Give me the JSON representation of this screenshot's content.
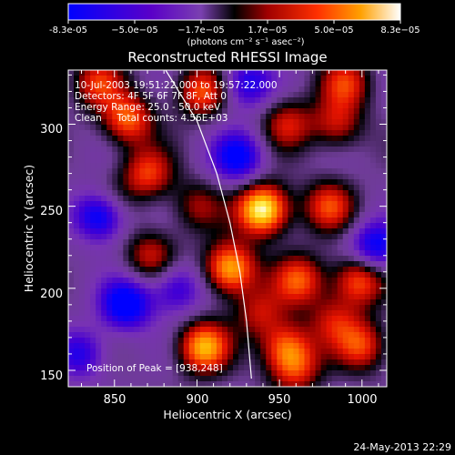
{
  "chart_data": {
    "type": "heatmap",
    "title": "Reconstructed RHESSI Image",
    "xlabel": "Heliocentric X (arcsec)",
    "ylabel": "Heliocentric Y (arcsec)",
    "xlim": [
      822,
      1015
    ],
    "ylim": [
      140,
      333
    ],
    "x_ticks": [
      850,
      900,
      950,
      1000
    ],
    "y_ticks": [
      150,
      200,
      250,
      300
    ],
    "colorbar": {
      "min": -8.3e-05,
      "max": 8.3e-05,
      "tick_labels": [
        "-8.3e-05",
        "−5.0e−05",
        "−1.7e−05",
        "1.7e−05",
        "5.0e−05",
        "8.3e−05"
      ],
      "unit_label": "(photons cm⁻² s⁻¹ asec⁻²)"
    },
    "annotations": [
      "10-Jul-2003 19:51:22.000 to 19:57:22.000",
      "Detectors: 4F 5F 6F 7F 8F, Att 0",
      "Energy Range: 25.0 - 50.0 keV",
      "Clean     Total counts: 4.56E+03"
    ],
    "peak_label": "Position of Peak = [938,248]",
    "peak": [
      938,
      248
    ],
    "limb_curve": [
      [
        881,
        333
      ],
      [
        900,
        302
      ],
      [
        912,
        270
      ],
      [
        920,
        240
      ],
      [
        926,
        210
      ],
      [
        930,
        180
      ],
      [
        933,
        145
      ]
    ],
    "sources": [
      [
        940,
        248,
        2.1
      ],
      [
        920,
        212,
        1.7
      ],
      [
        904,
        164,
        1.6
      ],
      [
        954,
        164,
        1.2
      ],
      [
        858,
        303,
        1.3
      ],
      [
        870,
        270,
        1.1
      ],
      [
        903,
        320,
        1.2
      ],
      [
        840,
        325,
        1.0
      ],
      [
        980,
        250,
        1.1
      ],
      [
        962,
        205,
        1.2
      ],
      [
        998,
        205,
        1.3
      ],
      [
        1000,
        165,
        1.1
      ],
      [
        985,
        300,
        0.9
      ],
      [
        990,
        325,
        1.0
      ],
      [
        955,
        300,
        0.9
      ],
      [
        872,
        220,
        0.9
      ],
      [
        848,
        252,
        0.6
      ],
      [
        960,
        150,
        0.9
      ],
      [
        983,
        180,
        0.8
      ],
      [
        900,
        250,
        0.7
      ],
      [
        938,
        185,
        0.8
      ],
      [
        857,
        190,
        -1.4
      ],
      [
        842,
        245,
        -1.6
      ],
      [
        925,
        280,
        -1.2
      ],
      [
        1008,
        225,
        -1.2
      ],
      [
        930,
        325,
        -1.0
      ],
      [
        830,
        160,
        -0.9
      ],
      [
        888,
        200,
        -0.9
      ]
    ]
  },
  "footer": {
    "timestamp": "24-May-2013 22:29"
  }
}
